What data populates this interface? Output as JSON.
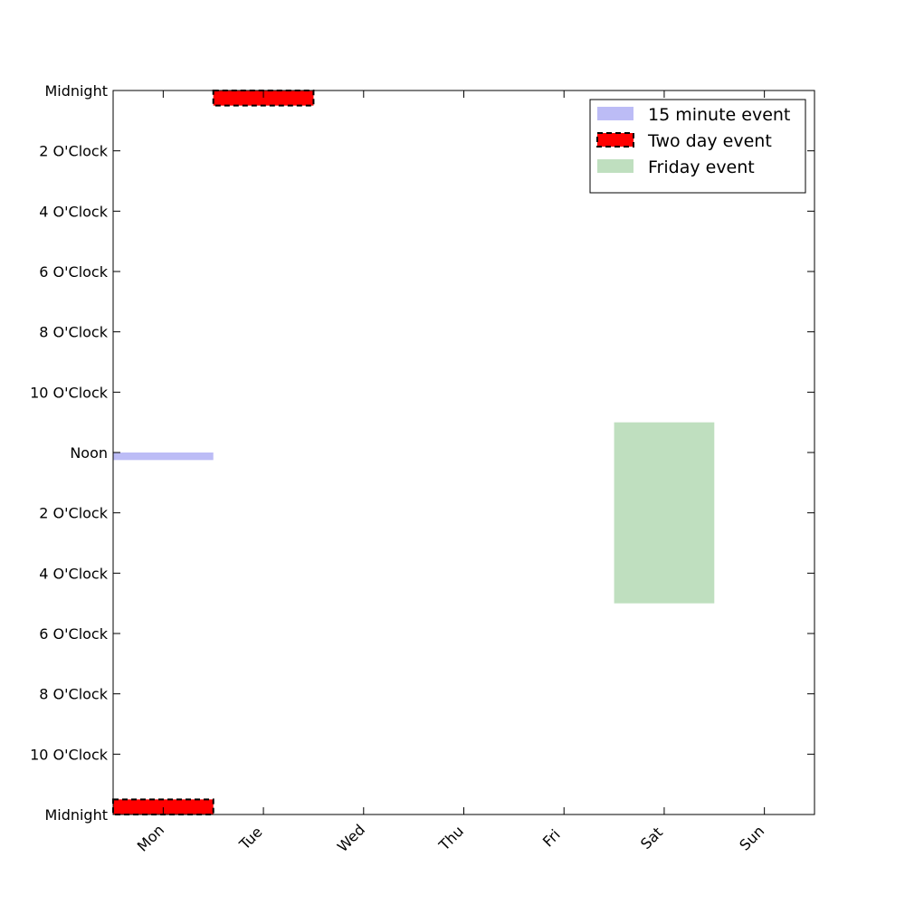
{
  "chart_data": {
    "type": "bar",
    "title": "",
    "xlabel": "",
    "ylabel": "",
    "x_categories": [
      "Mon",
      "Tue",
      "Wed",
      "Thu",
      "Fri",
      "Sat",
      "Sun"
    ],
    "y_tick_labels": [
      "Midnight",
      "2 O'Clock",
      "4 O'Clock",
      "6 O'Clock",
      "8 O'Clock",
      "10 O'Clock",
      "Noon",
      "2 O'Clock",
      "4 O'Clock",
      "6 O'Clock",
      "8 O'Clock",
      "10 O'Clock",
      "Midnight"
    ],
    "y_tick_hours": [
      0,
      2,
      4,
      6,
      8,
      10,
      12,
      14,
      16,
      18,
      20,
      22,
      24
    ],
    "ylim": [
      0,
      24
    ],
    "y_inverted": true,
    "x_tick_rotation_deg": -45,
    "grid": false,
    "legend_position": "top-right",
    "series": [
      {
        "name": "15 minute event",
        "color": "#bcbcf6",
        "style": "solid",
        "events": [
          {
            "day": "Mon",
            "start_hour": 12.0,
            "end_hour": 12.25
          }
        ]
      },
      {
        "name": "Two day event",
        "color": "#ff0000",
        "style": "dashed-outline",
        "events": [
          {
            "day": "Mon",
            "start_hour": 23.5,
            "end_hour": 24.0
          },
          {
            "day": "Tue",
            "start_hour": 0.0,
            "end_hour": 0.5
          }
        ]
      },
      {
        "name": "Friday event",
        "color": "#bfdfbf",
        "style": "solid",
        "events": [
          {
            "day": "Sat",
            "start_hour": 11.0,
            "end_hour": 17.0
          }
        ]
      }
    ]
  }
}
